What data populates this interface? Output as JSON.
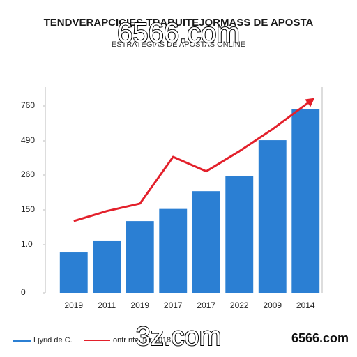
{
  "chart_data": {
    "type": "bar-line",
    "title": "TENDVERAPCICIES TRABUITEJORMASS DE APOSTA",
    "subtitle": "ESTRATEGIAS DE APOSTAS ONLINE",
    "watermarks": [
      "6566.com",
      "3z.com"
    ],
    "logo": "6566.com",
    "categories": [
      "2019",
      "2011",
      "2019",
      "2017",
      "2017",
      "2022",
      "2009",
      "2014"
    ],
    "series": [
      {
        "name": "Ljyrid de C.",
        "kind": "bar",
        "color": "#2b7fd3",
        "values": [
          0.84,
          19,
          102,
          153,
          209,
          256,
          495,
          738
        ]
      },
      {
        "name": "ontr nta iter 2018",
        "kind": "line",
        "color": "#e3202b",
        "values": [
          102,
          145,
          170,
          382,
          285,
          420,
          580,
          770
        ]
      }
    ],
    "ylim": [
      0,
      906
    ],
    "yticks": [
      0,
      {
        "value": 1,
        "label": "1.0"
      },
      150,
      260,
      490,
      760
    ],
    "grid": false
  }
}
